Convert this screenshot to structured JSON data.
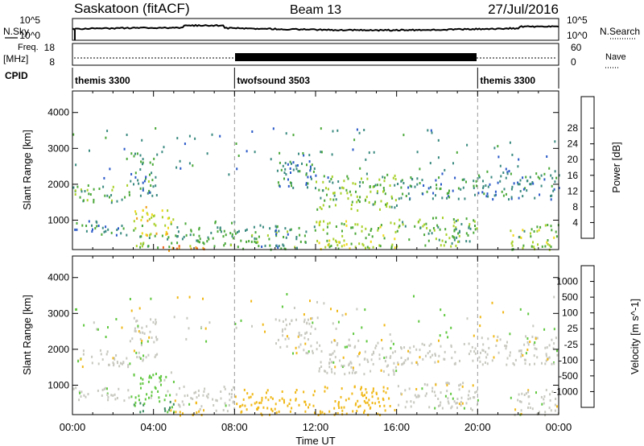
{
  "header": {
    "station": "Saskatoon (fitACF)",
    "beam": "Beam 13",
    "date": "27/Jul/2016"
  },
  "side_labels": {
    "nsky": "N.Sky",
    "nsearch": "N.Search",
    "freq_line1": "Freq.",
    "freq_line2": "[MHz]",
    "nave": "Nave",
    "cpid": "CPID"
  },
  "noise_panel": {
    "left_ticks": [
      "10^5",
      "10^0"
    ],
    "right_ticks": [
      "10^5",
      "10^0"
    ]
  },
  "freq_panel": {
    "left_ticks": [
      "18",
      "8"
    ],
    "right_ticks": [
      "60",
      "0"
    ]
  },
  "cpid_segments": [
    {
      "label": "themis 3300",
      "start_h": 0,
      "end_h": 8
    },
    {
      "label": "twofsound 3503",
      "start_h": 8,
      "end_h": 20
    },
    {
      "label": "themis 3300",
      "start_h": 20,
      "end_h": 24
    }
  ],
  "x_axis": {
    "label": "Time UT",
    "ticks": [
      "00:00",
      "04:00",
      "08:00",
      "12:00",
      "16:00",
      "20:00",
      "00:00"
    ],
    "range_hours": [
      0,
      24
    ]
  },
  "y_axis": {
    "label": "Slant Range [km]",
    "ticks": [
      "1000",
      "2000",
      "3000",
      "4000"
    ],
    "range_km": [
      180,
      4600
    ]
  },
  "power_colorbar": {
    "label": "Power [dB]",
    "ticks": [
      "4",
      "8",
      "12",
      "16",
      "20",
      "24",
      "28"
    ],
    "colors": [
      "#1818f0",
      "#2858c8",
      "#3a8a80",
      "#4aa838",
      "#a8d028",
      "#f0d818",
      "#f0a018",
      "#f06018",
      "#e81818"
    ]
  },
  "velocity_colorbar": {
    "label": "Velocity [m s^-1]",
    "ticks": [
      "1000",
      "500",
      "100",
      "25",
      "-25",
      "-100",
      "-500",
      "-1000"
    ],
    "colors": [
      "#1830c8",
      "#3868a8",
      "#3a8a60",
      "#60c840",
      "#c8c8c0",
      "#f0b818",
      "#f08818",
      "#f05818",
      "#e81818"
    ]
  },
  "chart_data": {
    "type": "heatmap",
    "panels": [
      "Power",
      "Velocity"
    ],
    "x_unit": "hours UT",
    "y_unit": "km",
    "xlim": [
      0,
      24
    ],
    "ylim": [
      180,
      4600
    ],
    "regions": [
      {
        "t0": 0.0,
        "t1": 2.8,
        "r0": 1500,
        "r1": 2000,
        "power": 13,
        "velocity": 0
      },
      {
        "t0": 2.8,
        "t1": 4.2,
        "r0": 1700,
        "r1": 2900,
        "power": 12,
        "velocity": 0
      },
      {
        "t0": 0.0,
        "t1": 3.0,
        "r0": 600,
        "r1": 1000,
        "power": 11,
        "velocity": 0
      },
      {
        "t0": 3.0,
        "t1": 5.0,
        "r0": 600,
        "r1": 1400,
        "power": 20,
        "velocity": 50
      },
      {
        "t0": 3.0,
        "t1": 5.0,
        "r0": 250,
        "r1": 600,
        "power": 14,
        "velocity": 100
      },
      {
        "t0": 5.0,
        "t1": 8.0,
        "r0": 300,
        "r1": 1000,
        "power": 13,
        "velocity": 0
      },
      {
        "t0": 4.0,
        "t1": 6.5,
        "r0": 180,
        "r1": 350,
        "power": 29,
        "velocity": -60
      },
      {
        "t0": 8.0,
        "t1": 12.0,
        "r0": 200,
        "r1": 900,
        "power": 12,
        "velocity": -60
      },
      {
        "t0": 10.0,
        "t1": 12.0,
        "r0": 1900,
        "r1": 2900,
        "power": 10,
        "velocity": 0
      },
      {
        "t0": 12.0,
        "t1": 16.0,
        "r0": 1300,
        "r1": 2300,
        "power": 15,
        "velocity": 0
      },
      {
        "t0": 12.0,
        "t1": 16.0,
        "r0": 200,
        "r1": 1000,
        "power": 17,
        "velocity": -60
      },
      {
        "t0": 16.0,
        "t1": 20.0,
        "r0": 1600,
        "r1": 2200,
        "power": 11,
        "velocity": 0
      },
      {
        "t0": 16.0,
        "t1": 20.0,
        "r0": 300,
        "r1": 1100,
        "power": 14,
        "velocity": 0
      },
      {
        "t0": 20.0,
        "t1": 24.0,
        "r0": 1600,
        "r1": 2400,
        "power": 9,
        "velocity": 0
      },
      {
        "t0": 21.5,
        "t1": 24.0,
        "r0": 200,
        "r1": 900,
        "power": 16,
        "velocity": 0
      }
    ]
  }
}
